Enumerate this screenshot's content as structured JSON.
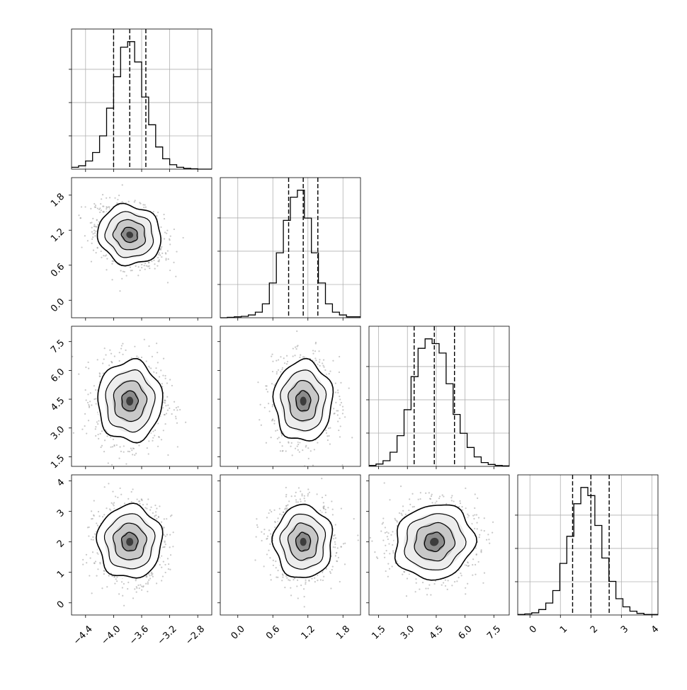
{
  "chart_data": {
    "type": "corner",
    "parameters": [
      {
        "ticks": [
          -4.4,
          -4.0,
          -3.6,
          -3.2,
          -2.8
        ],
        "tick_labels": [
          "−4.4",
          "−4.0",
          "−3.6",
          "−3.2",
          "−2.8"
        ],
        "range": [
          -4.6,
          -2.6
        ],
        "quantiles": [
          -4.0,
          -3.77,
          -3.54
        ],
        "mean": -3.77,
        "sd": 0.23
      },
      {
        "ticks": [
          0.0,
          0.6,
          1.2,
          1.8
        ],
        "tick_labels": [
          "0.0",
          "0.6",
          "1.2",
          "1.8"
        ],
        "range": [
          -0.3,
          2.1
        ],
        "quantiles": [
          0.87,
          1.12,
          1.37
        ],
        "mean": 1.12,
        "sd": 0.25
      },
      {
        "ticks": [
          1.5,
          3.0,
          4.5,
          6.0,
          7.5
        ],
        "tick_labels": [
          "1.5",
          "3.0",
          "4.5",
          "6.0",
          "7.5"
        ],
        "range": [
          1.0,
          8.3
        ],
        "quantiles": [
          3.35,
          4.4,
          5.45
        ],
        "mean": 4.4,
        "sd": 1.05
      },
      {
        "ticks": [
          0,
          1,
          2,
          3,
          4
        ],
        "tick_labels": [
          "0",
          "1",
          "2",
          "3",
          "4"
        ],
        "range": [
          -0.4,
          4.2
        ],
        "quantiles": [
          1.4,
          2.0,
          2.6
        ],
        "mean": 2.0,
        "sd": 0.6
      }
    ],
    "histograms": [
      {
        "param": 0,
        "bins": 20,
        "counts": [
          5,
          9,
          22,
          45,
          90,
          165,
          250,
          330,
          345,
          290,
          195,
          120,
          60,
          28,
          12,
          5,
          2,
          1,
          0,
          0
        ]
      },
      {
        "param": 1,
        "bins": 20,
        "counts": [
          0,
          1,
          2,
          3,
          6,
          12,
          30,
          75,
          140,
          210,
          260,
          275,
          215,
          140,
          75,
          30,
          12,
          6,
          2,
          2
        ]
      },
      {
        "param": 2,
        "bins": 20,
        "counts": [
          2,
          5,
          12,
          30,
          65,
          120,
          190,
          250,
          270,
          260,
          240,
          175,
          110,
          70,
          40,
          20,
          8,
          4,
          2,
          1
        ]
      },
      {
        "param": 3,
        "bins": 20,
        "counts": [
          1,
          2,
          4,
          10,
          22,
          45,
          95,
          145,
          205,
          235,
          220,
          165,
          105,
          62,
          30,
          15,
          7,
          3,
          1,
          1
        ]
      }
    ],
    "contour_levels": [
      "0.5",
      "1.0",
      "1.5",
      "2.0"
    ],
    "grid": true
  }
}
